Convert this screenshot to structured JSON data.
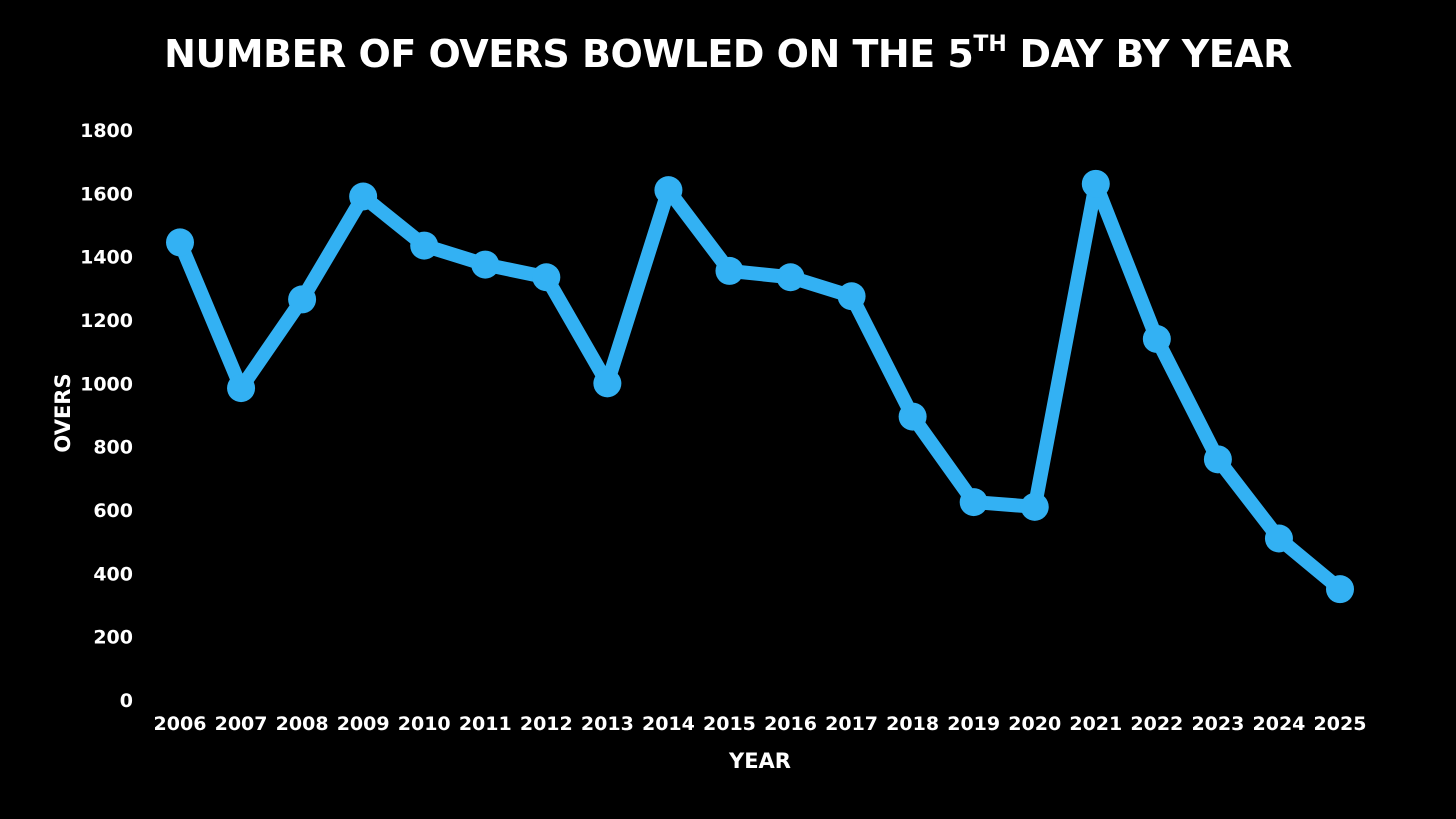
{
  "title": {
    "main": "NUMBER OF OVERS BOWLED ON THE 5",
    "superscript": "TH",
    "suffix": " DAY BY YEAR"
  },
  "chart_data": {
    "type": "line",
    "title": "NUMBER OF OVERS BOWLED ON THE 5TH DAY BY YEAR",
    "xlabel": "YEAR",
    "ylabel": "OVERS",
    "categories": [
      "2006",
      "2007",
      "2008",
      "2009",
      "2010",
      "2011",
      "2012",
      "2013",
      "2014",
      "2015",
      "2016",
      "2017",
      "2018",
      "2019",
      "2020",
      "2021",
      "2022",
      "2023",
      "2024",
      "2025"
    ],
    "series": [
      {
        "values": [
          1445,
          985,
          1265,
          1590,
          1435,
          1375,
          1335,
          1000,
          1610,
          1355,
          1335,
          1275,
          895,
          625,
          610,
          1630,
          1140,
          760,
          510,
          350
        ],
        "color": "#33b1f3"
      }
    ],
    "ylim": [
      0,
      1800
    ],
    "yticks": [
      "0",
      "200",
      "400",
      "600",
      "800",
      "1000",
      "1200",
      "1400",
      "1600",
      "1800"
    ],
    "grid": false,
    "legend": "none",
    "background": "#000000",
    "text_color": "#ffffff"
  }
}
